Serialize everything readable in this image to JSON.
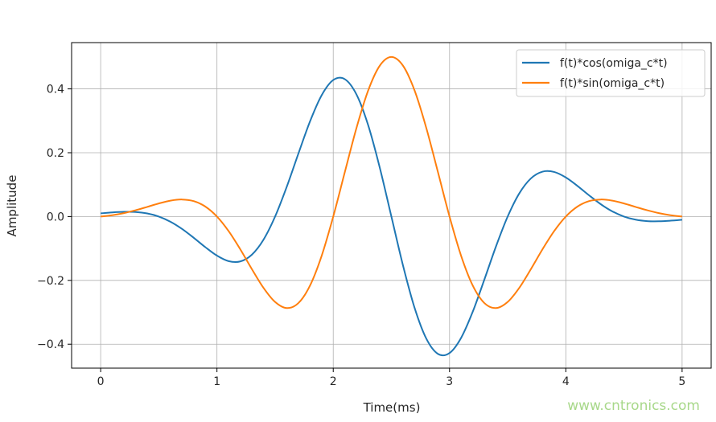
{
  "chart_data": {
    "type": "line",
    "title": "",
    "xlabel": "Time(ms)",
    "ylabel": "Amplitude",
    "xlim": [
      -0.25,
      5.25
    ],
    "ylim": [
      -0.475,
      0.545
    ],
    "xticks": [
      0,
      1,
      2,
      3,
      4,
      5
    ],
    "xtick_labels": [
      "0",
      "1",
      "2",
      "3",
      "4",
      "5"
    ],
    "yticks": [
      -0.4,
      -0.2,
      0.0,
      0.2,
      0.4
    ],
    "ytick_labels": [
      "−0.4",
      "−0.2",
      "0.0",
      "0.2",
      "0.4"
    ],
    "grid": true,
    "legend_placement": "top-right",
    "x": [
      0,
      0.1,
      0.2,
      0.3,
      0.4,
      0.5,
      0.6,
      0.7,
      0.8,
      0.9,
      1.0,
      1.1,
      1.2,
      1.3,
      1.4,
      1.5,
      1.6,
      1.7,
      1.8,
      1.9,
      2.0,
      2.1,
      2.2,
      2.3,
      2.4,
      2.5,
      2.6,
      2.7,
      2.8,
      2.9,
      3.0,
      3.1,
      3.2,
      3.3,
      3.4,
      3.5,
      3.6,
      3.7,
      3.8,
      3.9,
      4.0,
      4.1,
      4.2,
      4.3,
      4.4,
      4.5,
      4.6,
      4.7,
      4.8,
      4.9,
      5.0
    ],
    "series": [
      {
        "name": "f(t)*cos(omiga_c*t)",
        "color": "#1f77b4",
        "values": [
          0.01,
          0.013,
          0.0148,
          0.0143,
          0.0098,
          0,
          -0.0162,
          -0.0388,
          -0.0665,
          -0.096,
          -0.1225,
          -0.1397,
          -0.1407,
          -0.1195,
          -0.0726,
          0,
          0.0931,
          0.197,
          0.2979,
          0.3798,
          0.4276,
          0.4303,
          0.3824,
          0.2867,
          0.1535,
          0,
          -0.1535,
          -0.2867,
          -0.3824,
          -0.4303,
          -0.4276,
          -0.3798,
          -0.2979,
          -0.197,
          -0.0931,
          0,
          0.0726,
          0.1195,
          0.1407,
          0.1397,
          0.1225,
          0.096,
          0.0665,
          0.0388,
          0.0162,
          0,
          -0.0098,
          -0.0143,
          -0.0148,
          -0.013,
          -0.0101
        ]
      },
      {
        "name": "f(t)*sin(omiga_c*t)",
        "color": "#ff7f0e",
        "values": [
          0,
          0.0042,
          0.0108,
          0.0197,
          0.0302,
          0.041,
          0.0498,
          0.0534,
          0.0483,
          0.0312,
          0,
          -0.0454,
          -0.1022,
          -0.1645,
          -0.2233,
          -0.2676,
          -0.2867,
          -0.2712,
          -0.2164,
          -0.1234,
          0,
          0.1398,
          0.2778,
          0.3946,
          0.4726,
          0.5,
          0.4726,
          0.3946,
          0.2778,
          0.1398,
          0,
          -0.1234,
          -0.2164,
          -0.2712,
          -0.2867,
          -0.2676,
          -0.2233,
          -0.1645,
          -0.1022,
          -0.0454,
          0,
          0.0312,
          0.0483,
          0.0534,
          0.0498,
          0.041,
          0.0302,
          0.0197,
          0.0108,
          0.0042,
          0
        ]
      }
    ]
  },
  "watermark": {
    "text": "www.cntronics.com",
    "color": "#a8d88a"
  }
}
